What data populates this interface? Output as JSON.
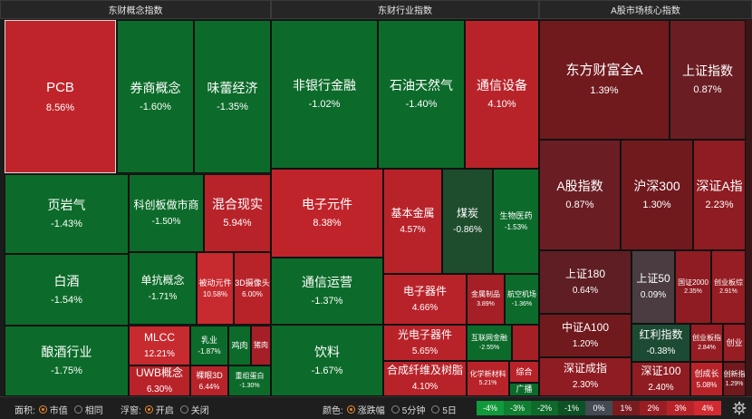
{
  "sections": [
    {
      "id": "concept",
      "title": "东财概念指数"
    },
    {
      "id": "industry",
      "title": "东财行业指数"
    },
    {
      "id": "core",
      "title": "A股市场核心指数"
    }
  ],
  "tiles": [
    {
      "id": "pcb",
      "name": "PCB",
      "pct": "8.56%",
      "color": "#c0242b"
    },
    {
      "id": "quanshang",
      "name": "券商概念",
      "pct": "-1.60%",
      "color": "#0c6b2a"
    },
    {
      "id": "weixu",
      "name": "味蕾经济",
      "pct": "-1.35%",
      "color": "#0c6b2a"
    },
    {
      "id": "yeyanqi",
      "name": "页岩气",
      "pct": "-1.43%",
      "color": "#0c6b2a"
    },
    {
      "id": "kechuang",
      "name": "科创板做市商",
      "pct": "-1.50%",
      "color": "#0c6b2a"
    },
    {
      "id": "hunhe",
      "name": "混合现实",
      "pct": "5.94%",
      "color": "#b8232a"
    },
    {
      "id": "baijiu",
      "name": "白酒",
      "pct": "-1.54%",
      "color": "#0c6b2a"
    },
    {
      "id": "dankang",
      "name": "单抗概念",
      "pct": "-1.71%",
      "color": "#0c6b2a"
    },
    {
      "id": "beidong",
      "name": "被动元件",
      "pct": "10.58%",
      "color": "#c72a2f"
    },
    {
      "id": "3d",
      "name": "3D摄像头",
      "pct": "6.00%",
      "color": "#b8232a"
    },
    {
      "id": "niangjiu",
      "name": "酿酒行业",
      "pct": "-1.75%",
      "color": "#0c6b2a"
    },
    {
      "id": "mlcc",
      "name": "MLCC",
      "pct": "12.21%",
      "color": "#c72a2f"
    },
    {
      "id": "ruye",
      "name": "乳业",
      "pct": "-1.87%",
      "color": "#0c6b2a"
    },
    {
      "id": "jirou",
      "name": "鸡肉",
      "pct": "",
      "color": "#0c6b2a"
    },
    {
      "id": "zhupai",
      "name": "猪肉",
      "pct": "",
      "color": "#a51f27"
    },
    {
      "id": "uwb",
      "name": "UWB概念",
      "pct": "6.30%",
      "color": "#b8232a"
    },
    {
      "id": "luoyan",
      "name": "裸眼3D",
      "pct": "6.44%",
      "color": "#b8232a"
    },
    {
      "id": "chongzu",
      "name": "重组蛋白",
      "pct": "-1.30%",
      "color": "#0c6b2a"
    },
    {
      "id": "feiyinhang",
      "name": "非银行金融",
      "pct": "-1.02%",
      "color": "#0c6b2a"
    },
    {
      "id": "shiyou",
      "name": "石油天然气",
      "pct": "-1.40%",
      "color": "#0c6b2a"
    },
    {
      "id": "tongxinshebei",
      "name": "通信设备",
      "pct": "4.10%",
      "color": "#b8232a"
    },
    {
      "id": "dianziyuanjian",
      "name": "电子元件",
      "pct": "8.38%",
      "color": "#c0242b"
    },
    {
      "id": "jibenjinshu",
      "name": "基本金属",
      "pct": "4.57%",
      "color": "#b8232a"
    },
    {
      "id": "meitan",
      "name": "煤炭",
      "pct": "-0.86%",
      "color": "#1e4d2e"
    },
    {
      "id": "shengwu",
      "name": "生物医药",
      "pct": "-1.53%",
      "color": "#0c6b2a"
    },
    {
      "id": "tongxinyunying",
      "name": "通信运营",
      "pct": "-1.37%",
      "color": "#0c6b2a"
    },
    {
      "id": "dianziqijian",
      "name": "电子器件",
      "pct": "4.66%",
      "color": "#b8232a"
    },
    {
      "id": "jinshuzhipin",
      "name": "金属制品",
      "pct": "3.89%",
      "color": "#a51f27"
    },
    {
      "id": "hangkong",
      "name": "航空机场",
      "pct": "-1.36%",
      "color": "#0c6b2a"
    },
    {
      "id": "yinliao",
      "name": "饮料",
      "pct": "-1.67%",
      "color": "#0c6b2a"
    },
    {
      "id": "guangdianzi",
      "name": "光电子器件",
      "pct": "5.65%",
      "color": "#b8232a"
    },
    {
      "id": "hulianwang",
      "name": "互联网金融",
      "pct": "-2.55%",
      "color": "#0c6b2a"
    },
    {
      "id": "xiaojiao",
      "name": "",
      "pct": "",
      "color": "#a51f27"
    },
    {
      "id": "hecheng",
      "name": "合成纤维及树脂",
      "pct": "4.10%",
      "color": "#b8232a"
    },
    {
      "id": "huaxue",
      "name": "化学新材料",
      "pct": "5.21%",
      "color": "#b8232a"
    },
    {
      "id": "zonghe",
      "name": "综合",
      "pct": "",
      "color": "#b8232a"
    },
    {
      "id": "guangbo",
      "name": "广播",
      "pct": "",
      "color": "#0c6b2a"
    },
    {
      "id": "dongfang",
      "name": "东方财富全A",
      "pct": "1.39%",
      "color": "#701a1e"
    },
    {
      "id": "shangzheng",
      "name": "上证指数",
      "pct": "0.87%",
      "color": "#6a1e23"
    },
    {
      "id": "agu",
      "name": "A股指数",
      "pct": "0.87%",
      "color": "#6a1e23"
    },
    {
      "id": "hushen300",
      "name": "沪深300",
      "pct": "1.30%",
      "color": "#701a1e"
    },
    {
      "id": "shenzhenA",
      "name": "深证A指",
      "pct": "2.23%",
      "color": "#8e1c22"
    },
    {
      "id": "shangzheng180",
      "name": "上证180",
      "pct": "0.64%",
      "color": "#5e1e23"
    },
    {
      "id": "shangzheng50",
      "name": "上证50",
      "pct": "0.09%",
      "color": "#4a3c40"
    },
    {
      "id": "guozheng2000",
      "name": "国证2000",
      "pct": "2.35%",
      "color": "#8e1c22"
    },
    {
      "id": "chuangyeban",
      "name": "创业板综",
      "pct": "2.91%",
      "color": "#961d23"
    },
    {
      "id": "zhongzhengA100",
      "name": "中证A100",
      "pct": "1.20%",
      "color": "#701a1e"
    },
    {
      "id": "hongli",
      "name": "红利指数",
      "pct": "-0.38%",
      "color": "#1d4a33"
    },
    {
      "id": "chuangyebanzhi",
      "name": "创业板指",
      "pct": "2.84%",
      "color": "#961d23"
    },
    {
      "id": "chuangye",
      "name": "创业",
      "pct": "",
      "color": "#961d23"
    },
    {
      "id": "shenzhengchengzhi",
      "name": "深证成指",
      "pct": "2.30%",
      "color": "#8e1c22"
    },
    {
      "id": "shenzheng100",
      "name": "深证100",
      "pct": "2.40%",
      "color": "#8e1c22"
    },
    {
      "id": "chuangchengzhang",
      "name": "创成长",
      "pct": "5.08%",
      "color": "#b8232a"
    },
    {
      "id": "chuangxin",
      "name": "创新指",
      "pct": "1.29%",
      "color": "#701a1e"
    }
  ],
  "footer": {
    "area_label": "面积:",
    "area_options": [
      "市值",
      "相同"
    ],
    "area_selected": 0,
    "float_label": "浮窗:",
    "float_options": [
      "开启",
      "关闭"
    ],
    "float_selected": 0,
    "color_label": "颜色:",
    "color_options": [
      "涨跌幅",
      "5分钟",
      "5日"
    ],
    "color_selected": 0,
    "legend": [
      {
        "label": "-4%",
        "color": "#109a3a"
      },
      {
        "label": "-3%",
        "color": "#0f7f31"
      },
      {
        "label": "-2%",
        "color": "#0d6a2a"
      },
      {
        "label": "-1%",
        "color": "#0c5224"
      },
      {
        "label": "0%",
        "color": "#424a52"
      },
      {
        "label": "1%",
        "color": "#7a1b20"
      },
      {
        "label": "2%",
        "color": "#981e24"
      },
      {
        "label": "3%",
        "color": "#b8232a"
      },
      {
        "label": "4%",
        "color": "#d32a31"
      }
    ],
    "settings_icon": "gear-icon"
  }
}
